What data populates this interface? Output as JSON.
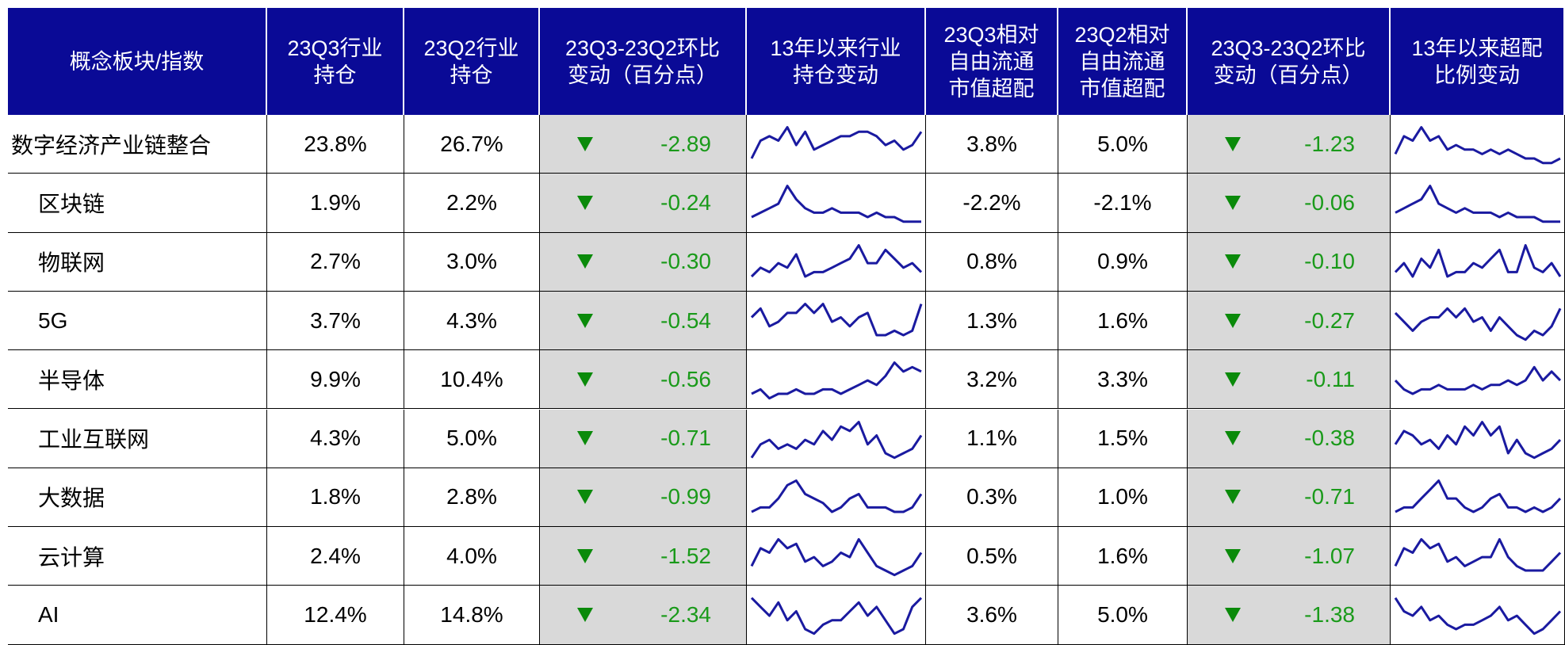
{
  "header": [
    [
      "概念板块/指数"
    ],
    [
      "23Q3行业",
      "持仓"
    ],
    [
      "23Q2行业",
      "持仓"
    ],
    [
      "23Q3-23Q2环比",
      "变动（百分点）"
    ],
    [
      "13年以来行业",
      "持仓变动"
    ],
    [
      "23Q3相对",
      "自由流通",
      "市值超配"
    ],
    [
      "23Q2相对",
      "自由流通",
      "市值超配"
    ],
    [
      "23Q3-23Q2环比",
      "变动（百分点）"
    ],
    [
      "13年以来超配",
      "比例变动"
    ]
  ],
  "rows": [
    {
      "name": "数字经济产业链整合",
      "q3": "23.8%",
      "q2": "26.7%",
      "chg": "-2.89",
      "hold_trend": [
        2,
        6,
        7,
        6,
        9,
        5,
        8,
        4,
        5,
        6,
        7,
        7,
        8,
        8,
        7,
        5,
        6,
        4,
        5,
        8
      ],
      "ex_q3": "3.8%",
      "ex_q2": "5.0%",
      "ex_chg": "-1.23",
      "ex_trend": [
        3,
        7,
        6,
        9,
        6,
        7,
        4,
        5,
        4,
        4,
        3,
        4,
        3,
        4,
        3,
        2,
        2,
        1,
        1,
        2
      ]
    },
    {
      "name": "区块链",
      "q3": "1.9%",
      "q2": "2.2%",
      "chg": "-0.24",
      "hold_trend": [
        2,
        3,
        4,
        5,
        9,
        6,
        4,
        3,
        3,
        4,
        3,
        3,
        3,
        2,
        3,
        2,
        2,
        1,
        1,
        1
      ],
      "ex_q3": "-2.2%",
      "ex_q2": "-2.1%",
      "ex_chg": "-0.06",
      "ex_trend": [
        3,
        4,
        5,
        6,
        9,
        5,
        4,
        3,
        4,
        3,
        3,
        3,
        2,
        3,
        2,
        2,
        2,
        1,
        1,
        1
      ]
    },
    {
      "name": "物联网",
      "q3": "2.7%",
      "q2": "3.0%",
      "chg": "-0.30",
      "hold_trend": [
        2,
        4,
        3,
        5,
        4,
        7,
        2,
        3,
        3,
        4,
        5,
        6,
        9,
        5,
        5,
        8,
        6,
        4,
        5,
        3
      ],
      "ex_q3": "0.8%",
      "ex_q2": "0.9%",
      "ex_chg": "-0.10",
      "ex_trend": [
        3,
        5,
        2,
        6,
        4,
        8,
        2,
        3,
        3,
        5,
        4,
        6,
        8,
        3,
        3,
        9,
        4,
        3,
        5,
        2
      ]
    },
    {
      "name": "5G",
      "q3": "3.7%",
      "q2": "4.3%",
      "chg": "-0.54",
      "hold_trend": [
        6,
        8,
        4,
        5,
        7,
        7,
        9,
        7,
        9,
        5,
        6,
        4,
        6,
        7,
        2,
        2,
        3,
        2,
        3,
        9
      ],
      "ex_q3": "1.3%",
      "ex_q2": "1.6%",
      "ex_chg": "-0.27",
      "ex_trend": [
        7,
        5,
        3,
        5,
        6,
        6,
        8,
        6,
        8,
        5,
        6,
        3,
        6,
        4,
        2,
        1,
        3,
        2,
        4,
        8
      ]
    },
    {
      "name": "半导体",
      "q3": "9.9%",
      "q2": "10.4%",
      "chg": "-0.56",
      "hold_trend": [
        2,
        3,
        1,
        2,
        2,
        3,
        2,
        2,
        3,
        3,
        2,
        3,
        4,
        5,
        4,
        6,
        9,
        7,
        8,
        7
      ],
      "ex_q3": "3.2%",
      "ex_q2": "3.3%",
      "ex_chg": "-0.11",
      "ex_trend": [
        5,
        3,
        2,
        3,
        3,
        4,
        3,
        3,
        3,
        4,
        3,
        4,
        4,
        5,
        4,
        5,
        8,
        5,
        7,
        5
      ]
    },
    {
      "name": "工业互联网",
      "q3": "4.3%",
      "q2": "5.0%",
      "chg": "-0.71",
      "hold_trend": [
        1,
        4,
        5,
        3,
        4,
        3,
        5,
        4,
        7,
        5,
        8,
        7,
        9,
        4,
        6,
        2,
        1,
        2,
        3,
        6
      ],
      "ex_q3": "1.1%",
      "ex_q2": "1.5%",
      "ex_chg": "-0.38",
      "ex_trend": [
        4,
        7,
        6,
        4,
        5,
        3,
        6,
        4,
        8,
        6,
        9,
        6,
        8,
        2,
        5,
        2,
        1,
        2,
        3,
        5
      ]
    },
    {
      "name": "大数据",
      "q3": "1.8%",
      "q2": "2.8%",
      "chg": "-0.99",
      "hold_trend": [
        2,
        3,
        3,
        5,
        8,
        9,
        6,
        5,
        4,
        2,
        3,
        5,
        6,
        3,
        3,
        3,
        2,
        2,
        3,
        6
      ],
      "ex_q3": "0.3%",
      "ex_q2": "1.0%",
      "ex_chg": "-0.71",
      "ex_trend": [
        2,
        3,
        3,
        5,
        7,
        9,
        5,
        5,
        3,
        2,
        3,
        5,
        6,
        3,
        3,
        2,
        3,
        2,
        3,
        5
      ]
    },
    {
      "name": "云计算",
      "q3": "2.4%",
      "q2": "4.0%",
      "chg": "-1.52",
      "hold_trend": [
        3,
        7,
        6,
        9,
        7,
        8,
        4,
        5,
        3,
        4,
        6,
        5,
        9,
        6,
        3,
        2,
        1,
        2,
        3,
        6
      ],
      "ex_q3": "0.5%",
      "ex_q2": "1.6%",
      "ex_chg": "-1.07",
      "ex_trend": [
        3,
        7,
        6,
        9,
        7,
        8,
        4,
        5,
        3,
        4,
        5,
        5,
        9,
        5,
        3,
        2,
        2,
        2,
        4,
        6
      ]
    },
    {
      "name": "AI",
      "q3": "12.4%",
      "q2": "14.8%",
      "chg": "-2.34",
      "hold_trend": [
        9,
        7,
        5,
        8,
        4,
        6,
        2,
        1,
        3,
        4,
        4,
        6,
        8,
        5,
        7,
        4,
        1,
        2,
        7,
        9
      ],
      "ex_q3": "3.6%",
      "ex_q2": "5.0%",
      "ex_chg": "-1.38",
      "ex_trend": [
        9,
        6,
        5,
        7,
        4,
        5,
        3,
        2,
        3,
        3,
        4,
        5,
        7,
        4,
        5,
        3,
        1,
        2,
        4,
        6
      ]
    }
  ]
}
